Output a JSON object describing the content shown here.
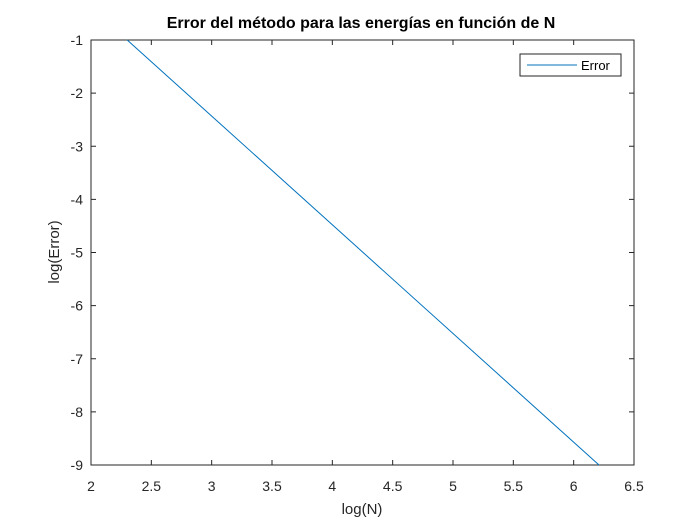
{
  "chart_data": {
    "type": "line",
    "title": "Error del método para las energías en función de N",
    "xlabel": "log(N)",
    "ylabel": "log(Error)",
    "xlim": [
      2,
      6.5
    ],
    "ylim": [
      -9,
      -1
    ],
    "xticks": [
      2,
      2.5,
      3,
      3.5,
      4,
      4.5,
      5,
      5.5,
      6,
      6.5
    ],
    "yticks": [
      -1,
      -2,
      -3,
      -4,
      -5,
      -6,
      -7,
      -8,
      -9
    ],
    "xtick_labels": [
      "2",
      "2.5",
      "3",
      "3.5",
      "4",
      "4.5",
      "5",
      "5.5",
      "6",
      "6.5"
    ],
    "ytick_labels": [
      "-1",
      "-2",
      "-3",
      "-4",
      "-5",
      "-6",
      "-7",
      "-8",
      "-9"
    ],
    "grid": false,
    "legend_position": "top-right",
    "series": [
      {
        "name": "Error",
        "color": "#0072bd",
        "x": [
          2.3,
          6.21
        ],
        "y": [
          -1,
          -9
        ]
      }
    ]
  }
}
